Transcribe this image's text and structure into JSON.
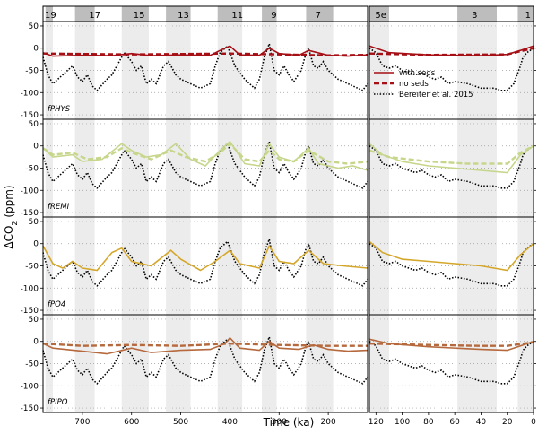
{
  "chart_data": {
    "type": "line",
    "xlabel": "Time (ka)",
    "ylabel": "ΔCO",
    "ylabel_subscript": "2",
    "ylabel_unit": " (ppm)",
    "ylim": [
      -160,
      60
    ],
    "yticks": [
      -150,
      -100,
      -50,
      0,
      50
    ],
    "grid_y": "dotted",
    "left_xlim": [
      780,
      120
    ],
    "left_xticks": [
      700,
      600,
      500,
      400,
      300,
      200
    ],
    "right_xlim": [
      125,
      0
    ],
    "right_xticks": [
      120,
      100,
      80,
      60,
      40,
      20,
      0
    ],
    "mis_labels": [
      {
        "label": "19",
        "ka": 780
      },
      {
        "label": "17",
        "ka": 690
      },
      {
        "label": "15",
        "ka": 600
      },
      {
        "label": "13",
        "ka": 510
      },
      {
        "label": "11",
        "ka": 400
      },
      {
        "label": "9",
        "ka": 320
      },
      {
        "label": "7",
        "ka": 230
      },
      {
        "label": "5e",
        "ka": 122
      },
      {
        "label": "3",
        "ka": 45
      },
      {
        "label": "1",
        "ka": 5
      }
    ],
    "shaded_left": [
      [
        775,
        760
      ],
      [
        715,
        675
      ],
      [
        620,
        565
      ],
      [
        530,
        480
      ],
      [
        425,
        375
      ],
      [
        335,
        305
      ],
      [
        245,
        190
      ]
    ],
    "shaded_right": [
      [
        125,
        110
      ],
      [
        58,
        28
      ],
      [
        12,
        0
      ]
    ],
    "legend": [
      {
        "label": "with seds",
        "style": "solid"
      },
      {
        "label": "no seds",
        "style": "dashed"
      },
      {
        "label": "Bereiter et al. 2015",
        "style": "dotted"
      }
    ],
    "panels": [
      {
        "name": "fPHYS",
        "color": "#a50f15",
        "with_seds_left": [
          [
            780,
            -10
          ],
          [
            760,
            -18
          ],
          [
            700,
            -16
          ],
          [
            640,
            -17
          ],
          [
            600,
            -12
          ],
          [
            560,
            -17
          ],
          [
            500,
            -15
          ],
          [
            440,
            -16
          ],
          [
            420,
            -5
          ],
          [
            400,
            5
          ],
          [
            380,
            -15
          ],
          [
            340,
            -16
          ],
          [
            320,
            0
          ],
          [
            300,
            -12
          ],
          [
            260,
            -16
          ],
          [
            240,
            -5
          ],
          [
            200,
            -16
          ],
          [
            160,
            -18
          ],
          [
            120,
            -15
          ]
        ],
        "with_seds_right": [
          [
            125,
            5
          ],
          [
            110,
            -10
          ],
          [
            80,
            -15
          ],
          [
            40,
            -17
          ],
          [
            20,
            -14
          ],
          [
            10,
            -5
          ],
          [
            0,
            5
          ]
        ],
        "no_seds_left": [
          [
            780,
            -12
          ],
          [
            600,
            -14
          ],
          [
            400,
            -12
          ],
          [
            200,
            -16
          ],
          [
            120,
            -15
          ]
        ],
        "no_seds_right": [
          [
            125,
            -12
          ],
          [
            80,
            -15
          ],
          [
            20,
            -14
          ],
          [
            0,
            0
          ]
        ]
      },
      {
        "name": "fREMI",
        "color": "#c6d68b",
        "with_seds_left": [
          [
            780,
            -5
          ],
          [
            760,
            -25
          ],
          [
            720,
            -20
          ],
          [
            700,
            -35
          ],
          [
            660,
            -30
          ],
          [
            620,
            5
          ],
          [
            600,
            -10
          ],
          [
            570,
            -25
          ],
          [
            540,
            -20
          ],
          [
            510,
            5
          ],
          [
            480,
            -30
          ],
          [
            450,
            -45
          ],
          [
            420,
            -10
          ],
          [
            400,
            10
          ],
          [
            370,
            -40
          ],
          [
            340,
            -45
          ],
          [
            320,
            5
          ],
          [
            300,
            -25
          ],
          [
            270,
            -35
          ],
          [
            240,
            -5
          ],
          [
            220,
            -40
          ],
          [
            180,
            -50
          ],
          [
            150,
            -45
          ],
          [
            120,
            -55
          ]
        ],
        "with_seds_right": [
          [
            125,
            5
          ],
          [
            115,
            -20
          ],
          [
            100,
            -35
          ],
          [
            80,
            -45
          ],
          [
            60,
            -50
          ],
          [
            40,
            -55
          ],
          [
            20,
            -60
          ],
          [
            10,
            -20
          ],
          [
            0,
            0
          ]
        ],
        "no_seds_left": [
          [
            780,
            -5
          ],
          [
            760,
            -20
          ],
          [
            720,
            -15
          ],
          [
            690,
            -30
          ],
          [
            650,
            -25
          ],
          [
            620,
            -5
          ],
          [
            600,
            -15
          ],
          [
            560,
            -30
          ],
          [
            520,
            -10
          ],
          [
            490,
            -25
          ],
          [
            450,
            -35
          ],
          [
            420,
            -15
          ],
          [
            400,
            5
          ],
          [
            370,
            -30
          ],
          [
            340,
            -35
          ],
          [
            320,
            -10
          ],
          [
            300,
            -30
          ],
          [
            270,
            -35
          ],
          [
            240,
            -10
          ],
          [
            200,
            -35
          ],
          [
            160,
            -40
          ],
          [
            120,
            -35
          ]
        ],
        "no_seds_right": [
          [
            125,
            -10
          ],
          [
            110,
            -25
          ],
          [
            80,
            -35
          ],
          [
            50,
            -40
          ],
          [
            20,
            -40
          ],
          [
            10,
            -15
          ],
          [
            0,
            0
          ]
        ]
      },
      {
        "name": "fPO4",
        "color": "#d4a62a",
        "with_seds_left": [
          [
            780,
            -5
          ],
          [
            760,
            -45
          ],
          [
            740,
            -55
          ],
          [
            720,
            -40
          ],
          [
            700,
            -55
          ],
          [
            670,
            -60
          ],
          [
            640,
            -20
          ],
          [
            620,
            -10
          ],
          [
            600,
            -40
          ],
          [
            560,
            -50
          ],
          [
            520,
            -15
          ],
          [
            500,
            -35
          ],
          [
            460,
            -60
          ],
          [
            430,
            -40
          ],
          [
            400,
            -15
          ],
          [
            380,
            -45
          ],
          [
            340,
            -55
          ],
          [
            320,
            -5
          ],
          [
            300,
            -40
          ],
          [
            270,
            -45
          ],
          [
            240,
            -15
          ],
          [
            210,
            -45
          ],
          [
            170,
            -50
          ],
          [
            120,
            -55
          ]
        ],
        "with_seds_right": [
          [
            125,
            5
          ],
          [
            115,
            -20
          ],
          [
            100,
            -35
          ],
          [
            80,
            -40
          ],
          [
            60,
            -45
          ],
          [
            40,
            -50
          ],
          [
            20,
            -60
          ],
          [
            10,
            -25
          ],
          [
            0,
            0
          ]
        ],
        "no_seds_left": [],
        "no_seds_right": []
      },
      {
        "name": "fPIPO",
        "color": "#b5693d",
        "with_seds_left": [
          [
            780,
            -5
          ],
          [
            760,
            -15
          ],
          [
            700,
            -22
          ],
          [
            650,
            -28
          ],
          [
            600,
            -15
          ],
          [
            560,
            -25
          ],
          [
            500,
            -20
          ],
          [
            440,
            -18
          ],
          [
            410,
            -5
          ],
          [
            400,
            8
          ],
          [
            380,
            -15
          ],
          [
            340,
            -20
          ],
          [
            320,
            0
          ],
          [
            300,
            -15
          ],
          [
            260,
            -18
          ],
          [
            230,
            -8
          ],
          [
            200,
            -18
          ],
          [
            160,
            -22
          ],
          [
            120,
            -20
          ]
        ],
        "with_seds_right": [
          [
            125,
            5
          ],
          [
            110,
            -5
          ],
          [
            80,
            -12
          ],
          [
            40,
            -18
          ],
          [
            20,
            -20
          ],
          [
            10,
            -10
          ],
          [
            0,
            0
          ]
        ],
        "no_seds_left": [
          [
            780,
            -5
          ],
          [
            700,
            -10
          ],
          [
            600,
            -8
          ],
          [
            500,
            -10
          ],
          [
            400,
            -5
          ],
          [
            300,
            -8
          ],
          [
            200,
            -10
          ],
          [
            120,
            -10
          ]
        ],
        "no_seds_right": [
          [
            125,
            -5
          ],
          [
            80,
            -8
          ],
          [
            40,
            -10
          ],
          [
            20,
            -10
          ],
          [
            0,
            -2
          ]
        ]
      }
    ],
    "bereiter_left": [
      [
        780,
        -20
      ],
      [
        770,
        -60
      ],
      [
        760,
        -80
      ],
      [
        750,
        -70
      ],
      [
        740,
        -60
      ],
      [
        730,
        -50
      ],
      [
        720,
        -40
      ],
      [
        710,
        -65
      ],
      [
        700,
        -75
      ],
      [
        690,
        -60
      ],
      [
        680,
        -85
      ],
      [
        670,
        -95
      ],
      [
        650,
        -70
      ],
      [
        640,
        -60
      ],
      [
        630,
        -40
      ],
      [
        615,
        -10
      ],
      [
        600,
        -30
      ],
      [
        590,
        -50
      ],
      [
        580,
        -40
      ],
      [
        570,
        -80
      ],
      [
        560,
        -70
      ],
      [
        550,
        -80
      ],
      [
        535,
        -40
      ],
      [
        525,
        -30
      ],
      [
        510,
        -60
      ],
      [
        500,
        -70
      ],
      [
        480,
        -80
      ],
      [
        460,
        -90
      ],
      [
        440,
        -80
      ],
      [
        430,
        -40
      ],
      [
        420,
        -10
      ],
      [
        405,
        5
      ],
      [
        390,
        -40
      ],
      [
        370,
        -70
      ],
      [
        350,
        -90
      ],
      [
        340,
        -70
      ],
      [
        330,
        -20
      ],
      [
        320,
        10
      ],
      [
        310,
        -50
      ],
      [
        300,
        -60
      ],
      [
        290,
        -40
      ],
      [
        280,
        -60
      ],
      [
        270,
        -75
      ],
      [
        255,
        -50
      ],
      [
        245,
        -10
      ],
      [
        240,
        0
      ],
      [
        230,
        -40
      ],
      [
        220,
        -45
      ],
      [
        210,
        -30
      ],
      [
        200,
        -50
      ],
      [
        190,
        -60
      ],
      [
        180,
        -70
      ],
      [
        170,
        -75
      ],
      [
        160,
        -80
      ],
      [
        150,
        -85
      ],
      [
        140,
        -90
      ],
      [
        130,
        -95
      ],
      [
        120,
        -80
      ]
    ],
    "bereiter_right": [
      [
        125,
        0
      ],
      [
        120,
        -10
      ],
      [
        115,
        -40
      ],
      [
        110,
        -45
      ],
      [
        105,
        -40
      ],
      [
        100,
        -50
      ],
      [
        90,
        -60
      ],
      [
        85,
        -55
      ],
      [
        80,
        -65
      ],
      [
        75,
        -70
      ],
      [
        70,
        -65
      ],
      [
        65,
        -80
      ],
      [
        60,
        -75
      ],
      [
        50,
        -80
      ],
      [
        40,
        -90
      ],
      [
        30,
        -90
      ],
      [
        25,
        -95
      ],
      [
        20,
        -95
      ],
      [
        15,
        -80
      ],
      [
        10,
        -40
      ],
      [
        8,
        -20
      ],
      [
        5,
        -10
      ],
      [
        0,
        0
      ]
    ]
  }
}
